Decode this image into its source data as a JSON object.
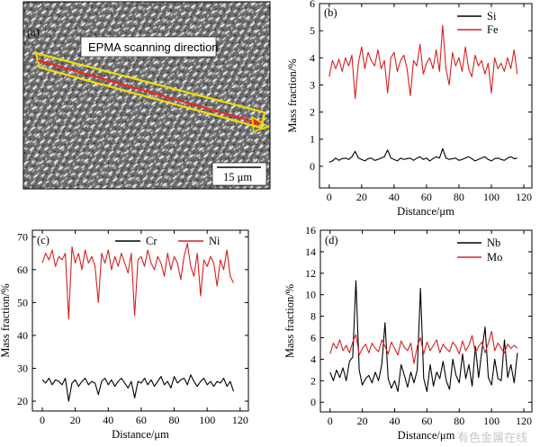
{
  "panel_a": {
    "label": "(a)",
    "arrow_label": "EPMA scanning direction",
    "scale_bar": "15 μm"
  },
  "watermark": "有色金属在线",
  "chart_data": [
    {
      "id": "b",
      "type": "line",
      "label": "(b)",
      "xlabel": "Distance/μm",
      "ylabel": "Mass fraction/%",
      "xlim": [
        -6,
        125
      ],
      "ylim": [
        -0.8,
        6
      ],
      "xticks": [
        0,
        20,
        40,
        60,
        80,
        100,
        120
      ],
      "yticks": [
        0,
        1,
        2,
        3,
        4,
        5,
        6
      ],
      "legend_position": "top-right",
      "series": [
        {
          "name": "Si",
          "color": "#000000",
          "x": [
            0,
            2,
            4,
            6,
            8,
            10,
            12,
            14,
            16,
            18,
            20,
            22,
            24,
            26,
            28,
            30,
            32,
            34,
            36,
            38,
            40,
            42,
            44,
            46,
            48,
            50,
            52,
            54,
            56,
            58,
            60,
            62,
            64,
            66,
            68,
            70,
            72,
            74,
            76,
            78,
            80,
            82,
            84,
            86,
            88,
            90,
            92,
            94,
            96,
            98,
            100,
            102,
            104,
            106,
            108,
            110,
            112,
            114,
            116
          ],
          "values": [
            0.15,
            0.2,
            0.3,
            0.22,
            0.28,
            0.3,
            0.25,
            0.35,
            0.55,
            0.3,
            0.25,
            0.2,
            0.28,
            0.3,
            0.22,
            0.25,
            0.3,
            0.35,
            0.6,
            0.3,
            0.25,
            0.2,
            0.3,
            0.25,
            0.28,
            0.3,
            0.22,
            0.3,
            0.35,
            0.25,
            0.3,
            0.2,
            0.28,
            0.35,
            0.3,
            0.65,
            0.3,
            0.25,
            0.28,
            0.3,
            0.22,
            0.25,
            0.3,
            0.35,
            0.28,
            0.2,
            0.25,
            0.3,
            0.35,
            0.25,
            0.2,
            0.28,
            0.3,
            0.25,
            0.22,
            0.3,
            0.35,
            0.28,
            0.3
          ]
        },
        {
          "name": "Fe",
          "color": "#d62020",
          "x": [
            0,
            2,
            4,
            6,
            8,
            10,
            12,
            14,
            16,
            18,
            20,
            22,
            24,
            26,
            28,
            30,
            32,
            34,
            36,
            38,
            40,
            42,
            44,
            46,
            48,
            50,
            52,
            54,
            56,
            58,
            60,
            62,
            64,
            66,
            68,
            70,
            72,
            74,
            76,
            78,
            80,
            82,
            84,
            86,
            88,
            90,
            92,
            94,
            96,
            98,
            100,
            102,
            104,
            106,
            108,
            110,
            112,
            114,
            116
          ],
          "values": [
            3.3,
            3.9,
            3.6,
            3.95,
            3.5,
            4.0,
            3.7,
            4.1,
            2.5,
            3.8,
            4.4,
            3.6,
            4.2,
            3.9,
            3.7,
            4.3,
            3.6,
            3.9,
            2.7,
            4.0,
            4.2,
            3.5,
            3.9,
            4.1,
            3.6,
            2.6,
            3.9,
            3.7,
            4.5,
            3.4,
            3.8,
            4.0,
            3.6,
            4.3,
            3.5,
            5.2,
            3.6,
            3.0,
            4.2,
            3.7,
            4.0,
            3.5,
            4.4,
            3.6,
            3.3,
            4.1,
            3.7,
            3.9,
            3.4,
            3.8,
            2.7,
            4.0,
            3.6,
            3.8,
            3.5,
            4.0,
            3.6,
            4.3,
            3.4
          ]
        }
      ]
    },
    {
      "id": "c",
      "type": "line",
      "label": "(c)",
      "xlabel": "Distance/μm",
      "ylabel": "Mass fraction/%",
      "xlim": [
        -6,
        125
      ],
      "ylim": [
        17,
        72
      ],
      "xticks": [
        0,
        20,
        40,
        60,
        80,
        100,
        120
      ],
      "yticks": [
        20,
        30,
        40,
        50,
        60,
        70
      ],
      "legend_position": "top",
      "series": [
        {
          "name": "Cr",
          "color": "#000000",
          "x": [
            0,
            2,
            4,
            6,
            8,
            10,
            12,
            14,
            16,
            18,
            20,
            22,
            24,
            26,
            28,
            30,
            32,
            34,
            36,
            38,
            40,
            42,
            44,
            46,
            48,
            50,
            52,
            54,
            56,
            58,
            60,
            62,
            64,
            66,
            68,
            70,
            72,
            74,
            76,
            78,
            80,
            82,
            84,
            86,
            88,
            90,
            92,
            94,
            96,
            98,
            100,
            102,
            104,
            106,
            108,
            110,
            112,
            114,
            116
          ],
          "values": [
            26.5,
            25.5,
            27,
            25,
            26.5,
            26,
            25,
            27,
            20,
            25.5,
            26.5,
            24.5,
            26,
            27,
            25,
            26,
            25.5,
            22,
            26,
            27,
            25,
            26.5,
            24.5,
            26,
            27,
            25.5,
            24,
            26,
            21,
            26,
            25.5,
            27,
            25,
            26.5,
            24.5,
            26,
            27.5,
            25,
            26,
            24,
            27.5,
            25.5,
            26.5,
            27,
            25,
            28,
            26,
            24.5,
            26,
            27,
            25,
            26,
            24.5,
            26,
            25.5,
            27,
            24.5,
            26,
            23
          ]
        },
        {
          "name": "Ni",
          "color": "#d62020",
          "x": [
            0,
            2,
            4,
            6,
            8,
            10,
            12,
            14,
            16,
            18,
            20,
            22,
            24,
            26,
            28,
            30,
            32,
            34,
            36,
            38,
            40,
            42,
            44,
            46,
            48,
            50,
            52,
            54,
            56,
            58,
            60,
            62,
            64,
            66,
            68,
            70,
            72,
            74,
            76,
            78,
            80,
            82,
            84,
            86,
            88,
            90,
            92,
            94,
            96,
            98,
            100,
            102,
            104,
            106,
            108,
            110,
            112,
            114,
            116
          ],
          "values": [
            62,
            65,
            63,
            66,
            61,
            64,
            63,
            65,
            45,
            67,
            62,
            65,
            60,
            66,
            62,
            64,
            61,
            50,
            65,
            62,
            66,
            60,
            64,
            61,
            65,
            62,
            59,
            65,
            46,
            63,
            64,
            61,
            66,
            62,
            60,
            64,
            62,
            58,
            65,
            60,
            64,
            62,
            57,
            64,
            68,
            61,
            58,
            65,
            52,
            63,
            61,
            64,
            62,
            55,
            63,
            60,
            66,
            58,
            56
          ]
        }
      ]
    },
    {
      "id": "d",
      "type": "line",
      "label": "(d)",
      "xlabel": "Distance/μm",
      "ylabel": "Mass fraction/%",
      "xlim": [
        -6,
        125
      ],
      "ylim": [
        -0.9,
        16
      ],
      "xticks": [
        0,
        20,
        40,
        60,
        80,
        100,
        120
      ],
      "yticks": [
        0,
        2,
        4,
        6,
        8,
        10,
        12,
        14,
        16
      ],
      "legend_position": "top-right",
      "series": [
        {
          "name": "Nb",
          "color": "#000000",
          "x": [
            0,
            2,
            4,
            6,
            8,
            10,
            12,
            14,
            16,
            18,
            20,
            22,
            24,
            26,
            28,
            30,
            32,
            34,
            36,
            38,
            40,
            42,
            44,
            46,
            48,
            50,
            52,
            54,
            56,
            58,
            60,
            62,
            64,
            66,
            68,
            70,
            72,
            74,
            76,
            78,
            80,
            82,
            84,
            86,
            88,
            90,
            92,
            94,
            96,
            98,
            100,
            102,
            104,
            106,
            108,
            110,
            112,
            114,
            116
          ],
          "values": [
            2.8,
            2.0,
            3.0,
            2.3,
            3.2,
            2.0,
            3.8,
            4.2,
            11.3,
            3.0,
            1.6,
            2.2,
            2.5,
            1.8,
            2.8,
            2.0,
            3.5,
            7.4,
            2.2,
            1.3,
            2.0,
            1.0,
            3.5,
            2.5,
            1.4,
            2.8,
            1.8,
            3.0,
            10.6,
            2.2,
            1.0,
            3.5,
            1.5,
            2.8,
            2.2,
            3.8,
            2.0,
            1.2,
            4.0,
            2.5,
            1.8,
            4.5,
            2.2,
            3.5,
            1.5,
            5.2,
            2.3,
            4.8,
            7.0,
            2.3,
            1.6,
            4.0,
            2.2,
            2.0,
            5.8,
            2.3,
            3.5,
            1.8,
            4.6
          ]
        },
        {
          "name": "Mo",
          "color": "#d62020",
          "x": [
            0,
            2,
            4,
            6,
            8,
            10,
            12,
            14,
            16,
            18,
            20,
            22,
            24,
            26,
            28,
            30,
            32,
            34,
            36,
            38,
            40,
            42,
            44,
            46,
            48,
            50,
            52,
            54,
            56,
            58,
            60,
            62,
            64,
            66,
            68,
            70,
            72,
            74,
            76,
            78,
            80,
            82,
            84,
            86,
            88,
            90,
            92,
            94,
            96,
            98,
            100,
            102,
            104,
            106,
            108,
            110,
            112,
            114,
            116
          ],
          "values": [
            4.5,
            5.5,
            5.0,
            5.8,
            4.8,
            5.3,
            4.6,
            5.6,
            6.3,
            4.4,
            5.0,
            5.4,
            4.6,
            5.5,
            5.0,
            4.7,
            5.8,
            5.2,
            4.5,
            5.6,
            5.0,
            4.4,
            5.7,
            5.1,
            4.8,
            5.5,
            3.6,
            5.2,
            6.0,
            4.5,
            5.6,
            4.8,
            5.3,
            5.8,
            4.6,
            5.4,
            5.0,
            4.7,
            5.6,
            5.2,
            4.5,
            5.7,
            4.8,
            5.3,
            6.2,
            4.6,
            5.2,
            5.6,
            4.6,
            5.5,
            6.6,
            4.8,
            5.5,
            5.0,
            4.6,
            5.4,
            5.0,
            5.3,
            5.0
          ]
        }
      ]
    }
  ]
}
